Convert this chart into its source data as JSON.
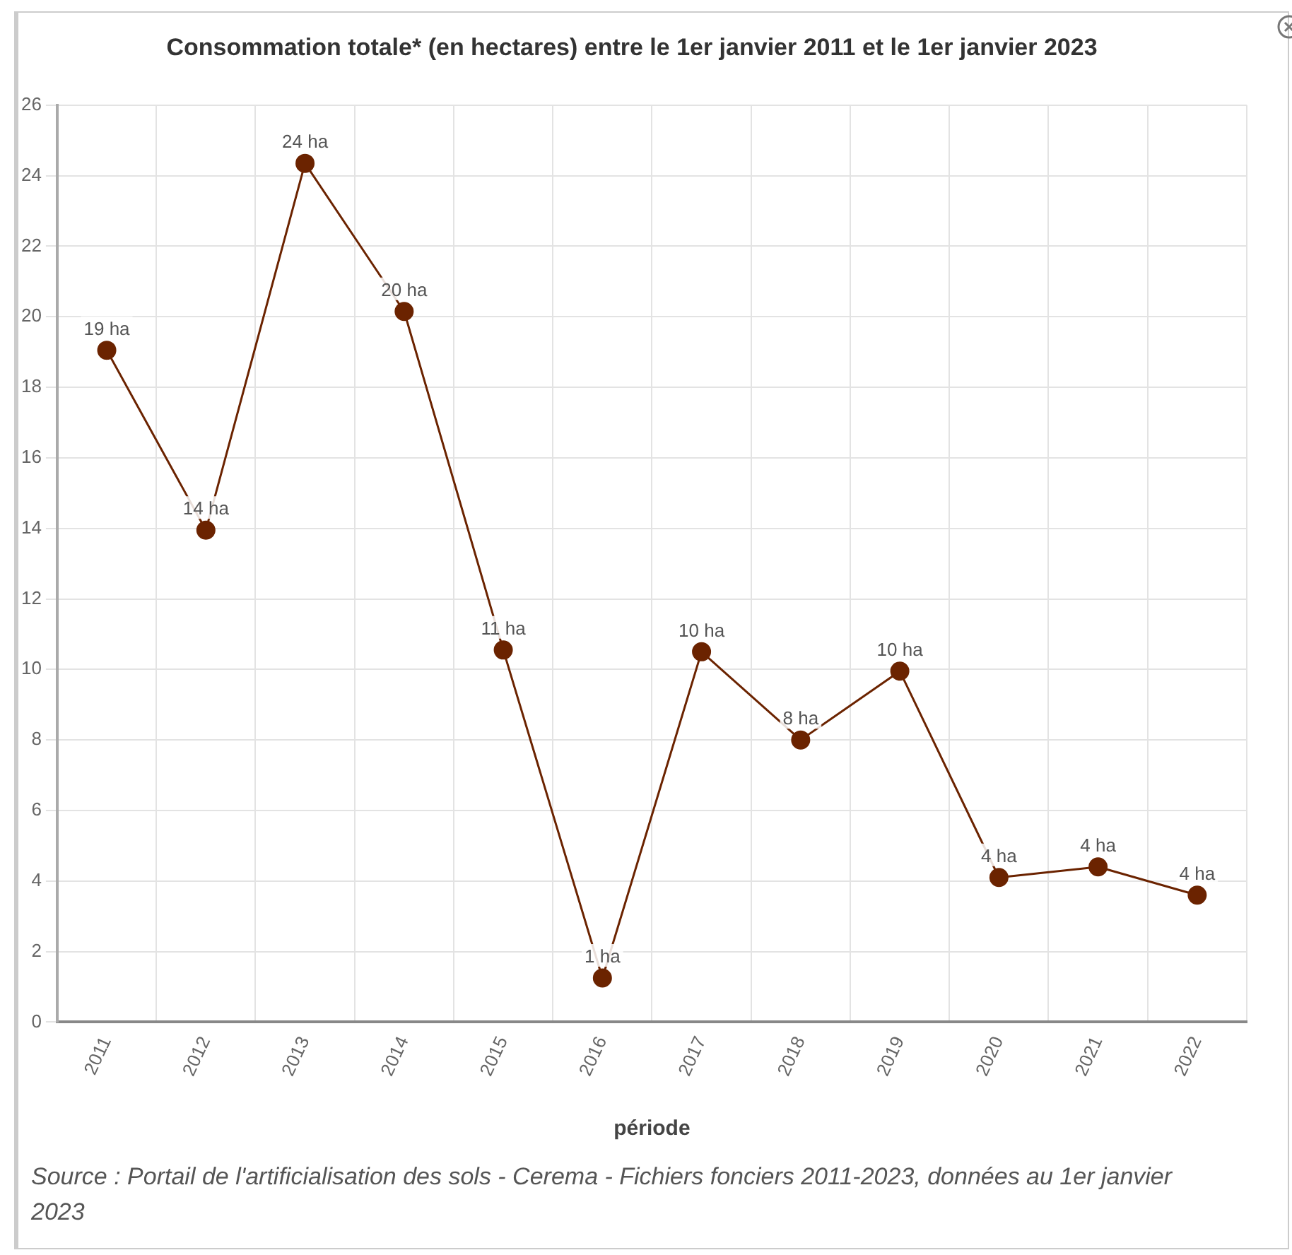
{
  "chart_data": {
    "type": "line",
    "title": "Consommation totale* (en hectares) entre le 1er janvier 2011 et le 1er janvier 2023",
    "xlabel": "période",
    "categories": [
      "2011",
      "2012",
      "2013",
      "2014",
      "2015",
      "2016",
      "2017",
      "2018",
      "2019",
      "2020",
      "2021",
      "2022"
    ],
    "series": [
      {
        "color": "#6b2300",
        "values": [
          19.05,
          13.95,
          24.35,
          20.15,
          10.55,
          1.25,
          10.5,
          8.0,
          9.95,
          4.1,
          4.4,
          3.6
        ],
        "value_labels": [
          "19 ha",
          "14 ha",
          "24 ha",
          "20 ha",
          "11 ha",
          "1 ha",
          "10 ha",
          "8 ha",
          "10 ha",
          "4 ha",
          "4 ha",
          "4 ha"
        ]
      }
    ],
    "ylim": [
      0,
      26
    ],
    "yticks": [
      0,
      2,
      4,
      6,
      8,
      10,
      12,
      14,
      16,
      18,
      20,
      22,
      24,
      26
    ],
    "grid": true,
    "legend": false,
    "marker": "circle",
    "line_style": "solid",
    "annotations": [
      "Source : Portail de l'artificialisation des sols - Cerema - Fichiers fonciers 2011-2023, données au 1er janvier 2023"
    ]
  }
}
